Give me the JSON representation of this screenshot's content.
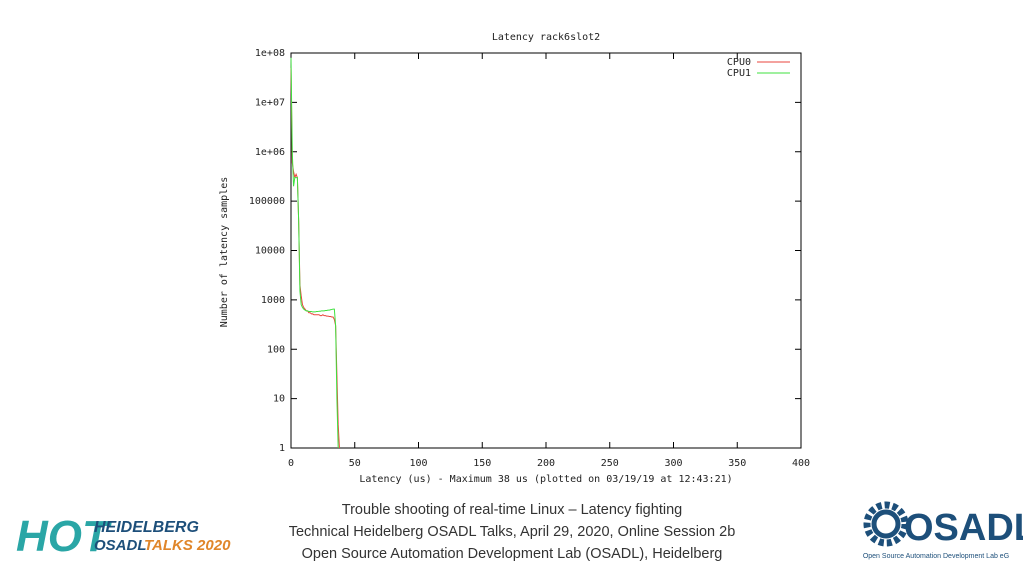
{
  "chart_data": {
    "type": "line",
    "title": "Latency rack6slot2",
    "x_label": "Latency (us) - Maximum 38 us (plotted on 03/19/19 at 12:43:21)",
    "y_label": "Number of latency samples",
    "x": [
      0,
      1,
      2,
      3,
      4,
      5,
      6,
      7,
      8,
      9,
      10,
      11,
      12,
      13,
      14,
      15,
      16,
      17,
      18,
      19,
      20,
      21,
      22,
      23,
      24,
      25,
      26,
      27,
      28,
      29,
      30,
      31,
      32,
      33,
      34,
      35,
      36,
      37,
      38
    ],
    "series": [
      {
        "name": "CPU0",
        "color": "#e8463c",
        "values": [
          50000000,
          600000,
          400000,
          300000,
          350000,
          300000,
          40000,
          2000,
          1200,
          800,
          700,
          650,
          600,
          600,
          550,
          550,
          520,
          520,
          500,
          500,
          500,
          500,
          500,
          480,
          480,
          500,
          480,
          480,
          470,
          470,
          460,
          460,
          450,
          450,
          400,
          300,
          30,
          3,
          1
        ]
      },
      {
        "name": "CPU1",
        "color": "#3fe03f",
        "values": [
          80000000,
          1000000,
          200000,
          300000,
          300000,
          300000,
          40000,
          1500,
          800,
          700,
          650,
          620,
          600,
          600,
          580,
          580,
          580,
          570,
          570,
          570,
          580,
          580,
          590,
          590,
          600,
          600,
          600,
          610,
          610,
          620,
          620,
          630,
          640,
          650,
          650,
          300,
          10,
          1,
          null
        ]
      }
    ],
    "xlim": [
      0,
      400
    ],
    "xticks": [
      0,
      50,
      100,
      150,
      200,
      250,
      300,
      350,
      400
    ],
    "ylim": [
      1,
      100000000
    ],
    "yticks": [
      1,
      10,
      100,
      1000,
      10000,
      100000,
      {
        "value": 1000000,
        "label": "1e+06"
      },
      {
        "value": 10000000,
        "label": "1e+07"
      },
      {
        "value": 100000000,
        "label": "1e+08"
      }
    ],
    "log_y": true,
    "grid": false,
    "legend": "top-right"
  },
  "footer": {
    "lines": [
      "Trouble shooting of real-time Linux – Latency fighting",
      "Technical Heidelberg OSADL Talks, April 29, 2020, Online Session 2b",
      "Open Source Automation Development Lab (OSADL), Heidelberg"
    ]
  },
  "logos": {
    "left": {
      "hot": "HOT",
      "line1": "HEIDELBERG",
      "line2a": "OSADL",
      "line2b": "TALKS 2020"
    },
    "right": {
      "name": "OSADL",
      "caption": "Open Source Automation Development Lab eG"
    }
  }
}
